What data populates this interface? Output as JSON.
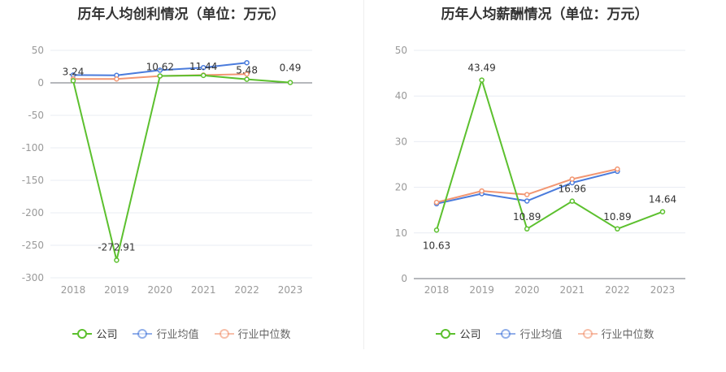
{
  "chart_data": [
    {
      "type": "line",
      "title": "历年人均创利情况（单位：万元）",
      "categories": [
        "2018",
        "2019",
        "2020",
        "2021",
        "2022",
        "2023"
      ],
      "ylim": [
        -300,
        50
      ],
      "yticks": [
        50,
        0,
        -50,
        -100,
        -150,
        -200,
        -250,
        -300
      ],
      "grid": true,
      "legend_position": "bottom",
      "series": [
        {
          "name": "公司",
          "color": "#5cc02e",
          "values": [
            3.24,
            -272.91,
            10.62,
            11.44,
            5.48,
            0.49
          ],
          "labels": [
            "3.24",
            "-272.91",
            "10.62",
            "11.44",
            "5.48",
            "0.49"
          ]
        },
        {
          "name": "行业均值",
          "color": "#4a7bdc",
          "values": [
            12,
            11.5,
            19.5,
            23.5,
            31,
            null
          ]
        },
        {
          "name": "行业中位数",
          "color": "#f29672",
          "values": [
            6,
            6,
            10.5,
            12,
            13.5,
            null
          ]
        }
      ]
    },
    {
      "type": "line",
      "title": "历年人均薪酬情况（单位：万元）",
      "categories": [
        "2018",
        "2019",
        "2020",
        "2021",
        "2022",
        "2023"
      ],
      "ylim": [
        0,
        50
      ],
      "yticks": [
        50,
        40,
        30,
        20,
        10,
        0
      ],
      "grid": true,
      "legend_position": "bottom",
      "series": [
        {
          "name": "公司",
          "color": "#5cc02e",
          "values": [
            10.63,
            43.49,
            10.89,
            16.96,
            10.89,
            14.64
          ],
          "labels": [
            "10.63",
            "43.49",
            "10.89",
            "16.96",
            "10.89",
            "14.64"
          ]
        },
        {
          "name": "行业均值",
          "color": "#4a7bdc",
          "values": [
            16.4,
            18.6,
            17,
            21,
            23.5,
            null
          ]
        },
        {
          "name": "行业中位数",
          "color": "#f29672",
          "values": [
            16.7,
            19.2,
            18.4,
            21.8,
            24,
            null
          ]
        }
      ]
    }
  ]
}
